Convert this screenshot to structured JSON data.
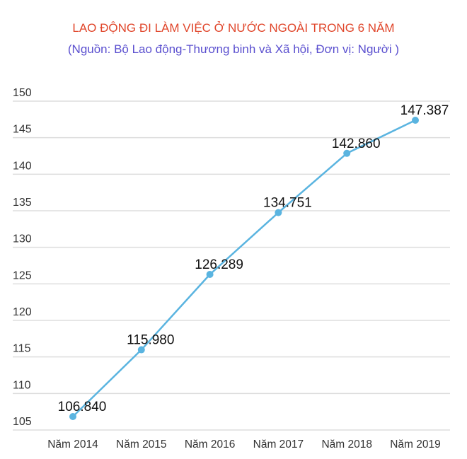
{
  "header": {
    "title": "LAO ĐỘNG ĐI LÀM VIỆC Ở NƯỚC NGOÀI TRONG 6 NĂM",
    "subtitle": "(Nguồn: Bộ Lao động-Thương binh và Xã hội, Đơn vị: Người )"
  },
  "colors": {
    "title": "#E0452A",
    "subtitle": "#5A4FCF",
    "line": "#5AB4E0",
    "grid": "#DDDDDD"
  },
  "chart_data": {
    "type": "line",
    "title": "LAO ĐỘNG ĐI LÀM VIỆC Ở NƯỚC NGOÀI TRONG 6 NĂM",
    "subtitle": "(Nguồn: Bộ Lao động-Thương binh và Xã hội, Đơn vị: Người )",
    "xlabel": "",
    "ylabel": "",
    "categories": [
      "Năm 2014",
      "Năm 2015",
      "Năm 2016",
      "Năm 2017",
      "Năm 2018",
      "Năm 2019"
    ],
    "series": [
      {
        "name": "Lao động đi làm việc ở nước ngoài",
        "values": [
          106.84,
          115.98,
          126.289,
          134.751,
          142.86,
          147.387
        ],
        "labels": [
          "106.840",
          "115.980",
          "126.289",
          "134.751",
          "142.860",
          "147.387"
        ]
      }
    ],
    "yticks": [
      "105",
      "110",
      "115",
      "120",
      "125",
      "130",
      "135",
      "140",
      "145",
      "150"
    ],
    "ylim": [
      105,
      150
    ],
    "grid": true,
    "legend": "none"
  }
}
